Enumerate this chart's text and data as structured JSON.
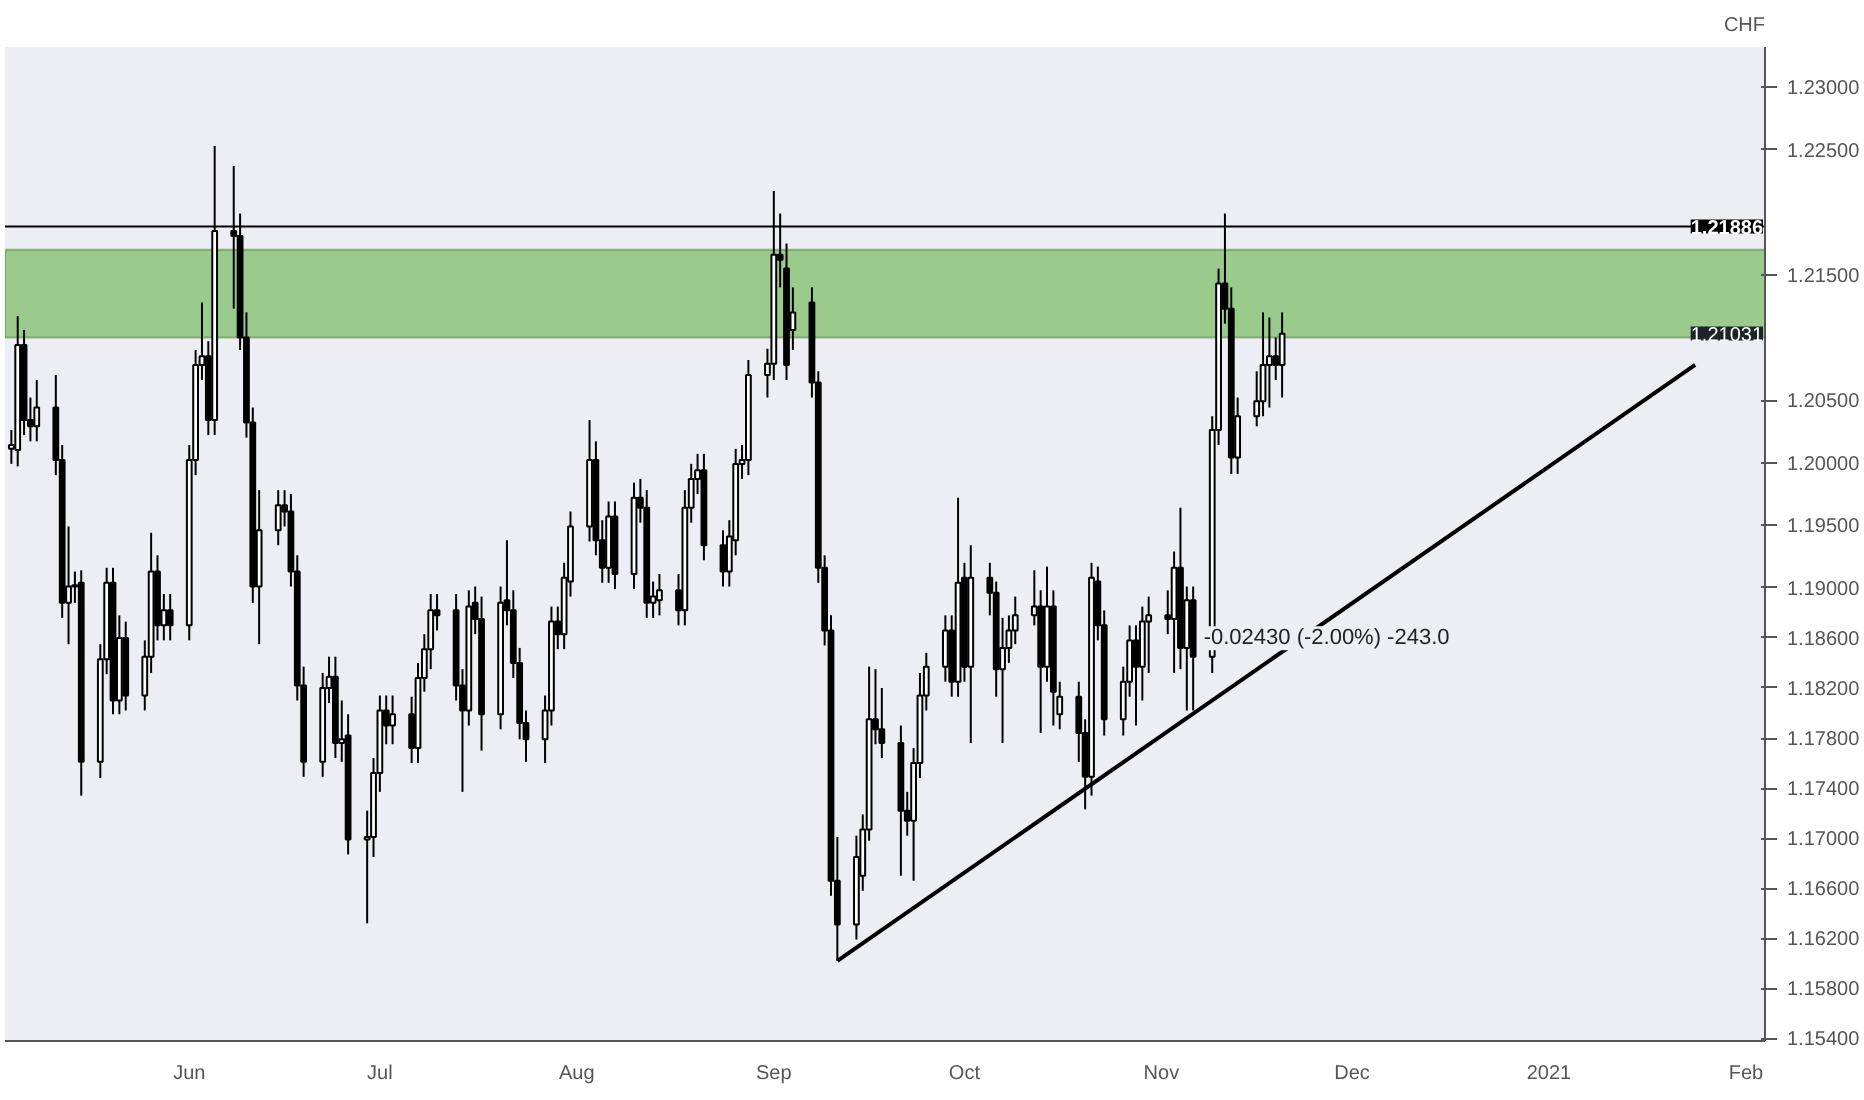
{
  "chart_data": {
    "type": "candlestick",
    "ylabel": "CHF",
    "x": [
      "2020-05-04",
      "2020-05-05",
      "2020-05-06",
      "2020-05-07",
      "2020-05-08",
      "2020-05-11",
      "2020-05-12",
      "2020-05-13",
      "2020-05-14",
      "2020-05-15",
      "2020-05-18",
      "2020-05-19",
      "2020-05-20",
      "2020-05-21",
      "2020-05-22",
      "2020-05-25",
      "2020-05-26",
      "2020-05-27",
      "2020-05-28",
      "2020-05-29",
      "2020-06-01",
      "2020-06-02",
      "2020-06-03",
      "2020-06-04",
      "2020-06-05",
      "2020-06-08",
      "2020-06-09",
      "2020-06-10",
      "2020-06-11",
      "2020-06-12",
      "2020-06-15",
      "2020-06-16",
      "2020-06-17",
      "2020-06-18",
      "2020-06-19",
      "2020-06-22",
      "2020-06-23",
      "2020-06-24",
      "2020-06-25",
      "2020-06-26",
      "2020-06-29",
      "2020-06-30",
      "2020-07-01",
      "2020-07-02",
      "2020-07-03",
      "2020-07-06",
      "2020-07-07",
      "2020-07-08",
      "2020-07-09",
      "2020-07-10",
      "2020-07-13",
      "2020-07-14",
      "2020-07-15",
      "2020-07-16",
      "2020-07-17",
      "2020-07-20",
      "2020-07-21",
      "2020-07-22",
      "2020-07-23",
      "2020-07-24",
      "2020-07-27",
      "2020-07-28",
      "2020-07-29",
      "2020-07-30",
      "2020-07-31",
      "2020-08-03",
      "2020-08-04",
      "2020-08-05",
      "2020-08-06",
      "2020-08-07",
      "2020-08-10",
      "2020-08-11",
      "2020-08-12",
      "2020-08-13",
      "2020-08-14",
      "2020-08-17",
      "2020-08-18",
      "2020-08-19",
      "2020-08-20",
      "2020-08-21",
      "2020-08-24",
      "2020-08-25",
      "2020-08-26",
      "2020-08-27",
      "2020-08-28",
      "2020-08-31",
      "2020-09-01",
      "2020-09-02",
      "2020-09-03",
      "2020-09-04",
      "2020-09-07",
      "2020-09-08",
      "2020-09-09",
      "2020-09-10",
      "2020-09-11",
      "2020-09-14",
      "2020-09-15",
      "2020-09-16",
      "2020-09-17",
      "2020-09-18",
      "2020-09-21",
      "2020-09-22",
      "2020-09-23",
      "2020-09-24",
      "2020-09-25",
      "2020-09-28",
      "2020-09-29",
      "2020-09-30",
      "2020-10-01",
      "2020-10-02",
      "2020-10-05",
      "2020-10-06",
      "2020-10-07",
      "2020-10-08",
      "2020-10-09",
      "2020-10-12",
      "2020-10-13",
      "2020-10-14",
      "2020-10-15",
      "2020-10-16",
      "2020-10-19",
      "2020-10-20",
      "2020-10-21",
      "2020-10-22",
      "2020-10-23",
      "2020-10-26",
      "2020-10-27",
      "2020-10-28",
      "2020-10-29",
      "2020-10-30",
      "2020-11-02",
      "2020-11-03",
      "2020-11-04",
      "2020-11-05",
      "2020-11-06",
      "2020-11-09",
      "2020-11-10",
      "2020-11-11",
      "2020-11-12",
      "2020-11-13",
      "2020-11-16",
      "2020-11-17",
      "2020-11-18",
      "2020-11-19",
      "2020-11-20"
    ],
    "ohlc": [
      [
        1.2011,
        1.2026,
        1.1999,
        1.2014
      ],
      [
        1.201,
        1.2117,
        1.1997,
        1.2094
      ],
      [
        1.2094,
        1.2106,
        1.2022,
        1.2034
      ],
      [
        1.2034,
        1.2052,
        1.2017,
        1.2029
      ],
      [
        1.2029,
        1.2066,
        1.2017,
        1.2044
      ],
      [
        1.2044,
        1.207,
        1.199,
        1.2002
      ],
      [
        1.2002,
        1.2014,
        1.1876,
        1.1888
      ],
      [
        1.1888,
        1.1949,
        1.1855,
        1.1901
      ],
      [
        1.1901,
        1.1913,
        1.1888,
        1.1902
      ],
      [
        1.1904,
        1.1914,
        1.1734,
        1.1761
      ],
      [
        1.1761,
        1.1855,
        1.1748,
        1.1843
      ],
      [
        1.1843,
        1.1916,
        1.1831,
        1.1904
      ],
      [
        1.1904,
        1.1916,
        1.1799,
        1.181
      ],
      [
        1.181,
        1.1878,
        1.1799,
        1.186
      ],
      [
        1.186,
        1.1873,
        1.1802,
        1.1814
      ],
      [
        1.1814,
        1.1858,
        1.1802,
        1.1845
      ],
      [
        1.1845,
        1.1944,
        1.1832,
        1.1913
      ],
      [
        1.1913,
        1.1926,
        1.1858,
        1.187
      ],
      [
        1.187,
        1.1895,
        1.1858,
        1.1882
      ],
      [
        1.1882,
        1.1895,
        1.1858,
        1.187
      ],
      [
        1.187,
        1.2014,
        1.1858,
        1.2002
      ],
      [
        1.2002,
        1.209,
        1.199,
        1.2078
      ],
      [
        1.2078,
        1.2128,
        1.2066,
        1.2085
      ],
      [
        1.2085,
        1.2097,
        1.2022,
        1.2034
      ],
      [
        1.2034,
        1.2253,
        1.2022,
        1.2185
      ],
      [
        1.2185,
        1.2237,
        1.2123,
        1.2181
      ],
      [
        1.2181,
        1.2199,
        1.209,
        1.21
      ],
      [
        1.21,
        1.212,
        1.202,
        1.2032
      ],
      [
        1.2032,
        1.2044,
        1.1888,
        1.1901
      ],
      [
        1.1901,
        1.1978,
        1.1855,
        1.1946
      ],
      [
        1.1946,
        1.1978,
        1.1934,
        1.1966
      ],
      [
        1.1966,
        1.1978,
        1.1949,
        1.1961
      ],
      [
        1.1961,
        1.1975,
        1.1901,
        1.1913
      ],
      [
        1.1913,
        1.1926,
        1.181,
        1.1822
      ],
      [
        1.1822,
        1.1837,
        1.1749,
        1.1761
      ],
      [
        1.1761,
        1.1832,
        1.1749,
        1.182
      ],
      [
        1.182,
        1.1845,
        1.1808,
        1.1829
      ],
      [
        1.1829,
        1.1845,
        1.1764,
        1.1776
      ],
      [
        1.1776,
        1.181,
        1.1761,
        1.1779
      ],
      [
        1.1782,
        1.1799,
        1.1687,
        1.1699
      ],
      [
        1.1699,
        1.1722,
        1.1632,
        1.1701
      ],
      [
        1.1701,
        1.1764,
        1.1685,
        1.1752
      ],
      [
        1.1752,
        1.1814,
        1.1737,
        1.1802
      ],
      [
        1.1802,
        1.1814,
        1.1775,
        1.179
      ],
      [
        1.179,
        1.1814,
        1.1775,
        1.1799
      ],
      [
        1.1799,
        1.1813,
        1.176,
        1.1772
      ],
      [
        1.1772,
        1.184,
        1.176,
        1.1828
      ],
      [
        1.1828,
        1.1863,
        1.1817,
        1.1851
      ],
      [
        1.1851,
        1.1895,
        1.1835,
        1.1882
      ],
      [
        1.1882,
        1.1895,
        1.1866,
        1.1878
      ],
      [
        1.1882,
        1.1895,
        1.181,
        1.1822
      ],
      [
        1.1822,
        1.1835,
        1.1737,
        1.1802
      ],
      [
        1.1802,
        1.1898,
        1.179,
        1.1885
      ],
      [
        1.1888,
        1.1901,
        1.1863,
        1.1875
      ],
      [
        1.1875,
        1.1893,
        1.177,
        1.1799
      ],
      [
        1.1799,
        1.1901,
        1.1787,
        1.1888
      ],
      [
        1.189,
        1.1938,
        1.187,
        1.1882
      ],
      [
        1.1882,
        1.1898,
        1.1828,
        1.184
      ],
      [
        1.184,
        1.1852,
        1.1779,
        1.1792
      ],
      [
        1.1792,
        1.1802,
        1.1761,
        1.1779
      ],
      [
        1.1779,
        1.1814,
        1.176,
        1.1802
      ],
      [
        1.1802,
        1.1885,
        1.179,
        1.1873
      ],
      [
        1.1873,
        1.1885,
        1.1851,
        1.1863
      ],
      [
        1.1863,
        1.192,
        1.1851,
        1.1908
      ],
      [
        1.1905,
        1.1961,
        1.1893,
        1.1949
      ],
      [
        1.1949,
        1.2034,
        1.1937,
        1.2002
      ],
      [
        1.2002,
        1.2017,
        1.1926,
        1.1938
      ],
      [
        1.1938,
        1.1954,
        1.1904,
        1.1916
      ],
      [
        1.1916,
        1.1969,
        1.1904,
        1.1957
      ],
      [
        1.1957,
        1.1969,
        1.1899,
        1.1911
      ],
      [
        1.1911,
        1.1984,
        1.1899,
        1.1972
      ],
      [
        1.1972,
        1.1987,
        1.1952,
        1.1964
      ],
      [
        1.1964,
        1.1978,
        1.1876,
        1.1888
      ],
      [
        1.1888,
        1.1905,
        1.1876,
        1.1893
      ],
      [
        1.189,
        1.1911,
        1.1878,
        1.1898
      ],
      [
        1.1898,
        1.1911,
        1.187,
        1.1882
      ],
      [
        1.1882,
        1.1978,
        1.187,
        1.1964
      ],
      [
        1.1964,
        1.1999,
        1.1952,
        1.1987
      ],
      [
        1.1987,
        1.2007,
        1.1975,
        1.1994
      ],
      [
        1.1994,
        1.2007,
        1.1922,
        1.1934
      ],
      [
        1.1934,
        1.1946,
        1.1901,
        1.1913
      ],
      [
        1.1913,
        1.1954,
        1.1901,
        1.1941
      ],
      [
        1.1938,
        1.2011,
        1.1926,
        1.1999
      ],
      [
        1.1999,
        1.2014,
        1.1987,
        1.2002
      ],
      [
        1.2002,
        1.2082,
        1.199,
        1.207
      ],
      [
        1.207,
        1.2091,
        1.2052,
        1.2079
      ],
      [
        1.2079,
        1.2217,
        1.2066,
        1.2166
      ],
      [
        1.2166,
        1.2199,
        1.214,
        1.2162
      ],
      [
        1.2155,
        1.2175,
        1.2066,
        1.2078
      ],
      [
        1.2106,
        1.214,
        1.209,
        1.212
      ],
      [
        1.2128,
        1.214,
        1.2052,
        1.2064
      ],
      [
        1.2064,
        1.2073,
        1.1904,
        1.1916
      ],
      [
        1.1916,
        1.1926,
        1.1854,
        1.1866
      ],
      [
        1.1866,
        1.1878,
        1.1654,
        1.1666
      ],
      [
        1.1666,
        1.1701,
        1.1602,
        1.1631
      ],
      [
        1.1631,
        1.1702,
        1.1619,
        1.1685
      ],
      [
        1.167,
        1.1719,
        1.1658,
        1.1707
      ],
      [
        1.1707,
        1.1837,
        1.1698,
        1.1795
      ],
      [
        1.1795,
        1.1835,
        1.1775,
        1.1787
      ],
      [
        1.1787,
        1.182,
        1.1764,
        1.1776
      ],
      [
        1.1776,
        1.179,
        1.167,
        1.1722
      ],
      [
        1.1722,
        1.1737,
        1.1702,
        1.1714
      ],
      [
        1.1714,
        1.1772,
        1.1666,
        1.176
      ],
      [
        1.176,
        1.1832,
        1.1748,
        1.1814
      ],
      [
        1.1814,
        1.1848,
        1.1802,
        1.1837
      ],
      [
        1.1837,
        1.1878,
        1.1825,
        1.1866
      ],
      [
        1.1866,
        1.1878,
        1.1813,
        1.1825
      ],
      [
        1.1825,
        1.1972,
        1.1813,
        1.1904
      ],
      [
        1.1908,
        1.192,
        1.1825,
        1.1837
      ],
      [
        1.1837,
        1.1934,
        1.1776,
        1.1908
      ],
      [
        1.1908,
        1.192,
        1.1878,
        1.1896
      ],
      [
        1.1896,
        1.1905,
        1.1813,
        1.1835
      ],
      [
        1.1835,
        1.1876,
        1.1776,
        1.1852
      ],
      [
        1.1852,
        1.1878,
        1.184,
        1.1866
      ],
      [
        1.1866,
        1.1893,
        1.1855,
        1.1878
      ],
      [
        1.1878,
        1.1914,
        1.187,
        1.1885
      ],
      [
        1.1885,
        1.1898,
        1.1784,
        1.1837
      ],
      [
        1.1837,
        1.1917,
        1.1825,
        1.1885
      ],
      [
        1.1885,
        1.1898,
        1.179,
        1.1817
      ],
      [
        1.1799,
        1.1825,
        1.1787,
        1.1813
      ],
      [
        1.1813,
        1.1825,
        1.1761,
        1.1784
      ],
      [
        1.1784,
        1.1795,
        1.1723,
        1.1749
      ],
      [
        1.1749,
        1.192,
        1.1734,
        1.1908
      ],
      [
        1.1905,
        1.1917,
        1.1858,
        1.187
      ],
      [
        1.187,
        1.1882,
        1.1782,
        1.1795
      ],
      [
        1.1795,
        1.1837,
        1.1782,
        1.1825
      ],
      [
        1.1825,
        1.187,
        1.1813,
        1.1858
      ],
      [
        1.1858,
        1.187,
        1.179,
        1.1837
      ],
      [
        1.1837,
        1.1885,
        1.181,
        1.1873
      ],
      [
        1.1873,
        1.1893,
        1.1832,
        1.1878
      ],
      [
        1.1878,
        1.1898,
        1.1863,
        1.1875
      ],
      [
        1.1875,
        1.1929,
        1.1832,
        1.1916
      ],
      [
        1.1916,
        1.1964,
        1.1835,
        1.1852
      ],
      [
        1.1852,
        1.1901,
        1.1802,
        1.189
      ],
      [
        1.189,
        1.1901,
        1.1802,
        1.1845
      ],
      [
        1.1845,
        1.2037,
        1.1832,
        1.2026
      ],
      [
        1.2026,
        1.2155,
        1.2014,
        1.2143
      ],
      [
        1.2143,
        1.2199,
        1.2111,
        1.2123
      ],
      [
        1.2123,
        1.214,
        1.1991,
        1.2004
      ],
      [
        1.2004,
        1.2052,
        1.1991,
        1.2037
      ],
      [
        1.2037,
        1.2073,
        1.2029,
        1.2049
      ],
      [
        1.2049,
        1.212,
        1.2037,
        1.2078
      ],
      [
        1.2078,
        1.2116,
        1.2044,
        1.2085
      ],
      [
        1.2085,
        1.21,
        1.2066,
        1.2078
      ],
      [
        1.2078,
        1.212,
        1.2052,
        1.2103
      ]
    ],
    "series": [
      {
        "type": "line",
        "x": [
          "2020-09-11",
          "2021-01-24"
        ],
        "values": [
          1.1602,
          1.2078
        ],
        "color": "#000000"
      }
    ],
    "ref_lines": [
      {
        "axis": "y",
        "value": 1.21886,
        "label": "1.21886",
        "color": "#000000"
      }
    ],
    "bands": [
      {
        "axis": "y",
        "from": 1.21,
        "to": 1.217,
        "color": "#8cc47a"
      }
    ],
    "annotations": [
      {
        "text": "-0.02430 (-2.00%) -243.0",
        "x": "2020-11-27",
        "y": 1.1882
      },
      {
        "text": "1.21031",
        "y": 1.21031
      }
    ],
    "xlim": [
      "2020-05-03",
      "2021-02-04"
    ],
    "xticks": [
      {
        "value": "2020-06-01",
        "label": "Jun"
      },
      {
        "value": "2020-07-01",
        "label": "Jul"
      },
      {
        "value": "2020-08-01",
        "label": "Aug"
      },
      {
        "value": "2020-09-01",
        "label": "Sep"
      },
      {
        "value": "2020-10-01",
        "label": "Oct"
      },
      {
        "value": "2020-11-01",
        "label": "Nov"
      },
      {
        "value": "2020-12-01",
        "label": "Dec"
      },
      {
        "value": "2021-01-01",
        "label": "2021"
      },
      {
        "value": "2021-02-01",
        "label": "Feb"
      }
    ],
    "ylim": [
      1.1538,
      1.2332
    ],
    "yticks": [
      {
        "value": 1.154,
        "label": "1.15400"
      },
      {
        "value": 1.158,
        "label": "1.15800"
      },
      {
        "value": 1.162,
        "label": "1.16200"
      },
      {
        "value": 1.166,
        "label": "1.16600"
      },
      {
        "value": 1.17,
        "label": "1.17000"
      },
      {
        "value": 1.174,
        "label": "1.17400"
      },
      {
        "value": 1.178,
        "label": "1.17800"
      },
      {
        "value": 1.182,
        "label": "1.18200"
      },
      {
        "value": 1.186,
        "label": "1.18600"
      },
      {
        "value": 1.19,
        "label": "1.19000"
      },
      {
        "value": 1.195,
        "label": "1.19500"
      },
      {
        "value": 1.2,
        "label": "1.20000"
      },
      {
        "value": 1.205,
        "label": "1.20500"
      },
      {
        "value": 1.215,
        "label": "1.21500"
      },
      {
        "value": 1.225,
        "label": "1.22500"
      },
      {
        "value": 1.23,
        "label": "1.23000"
      }
    ],
    "grid": false
  }
}
